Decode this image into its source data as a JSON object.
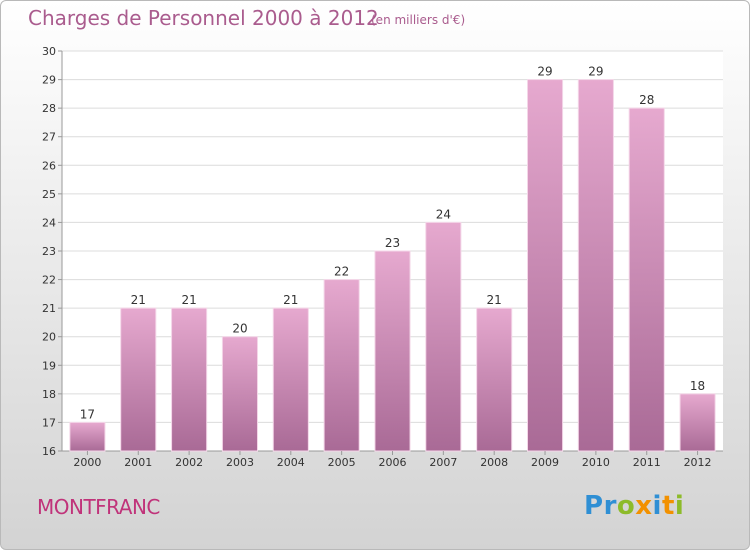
{
  "title": "Charges de Personnel 2000 à 2012",
  "subtitle": "(en milliers d'€)",
  "commune": "MONTFRANC",
  "logo": {
    "letters": [
      {
        "ch": "P",
        "color": "#2f8fd4"
      },
      {
        "ch": "r",
        "color": "#2f8fd4"
      },
      {
        "ch": "o",
        "color": "#8dbb2a"
      },
      {
        "ch": "x",
        "color": "#f29100"
      },
      {
        "ch": "i",
        "color": "#2f8fd4"
      },
      {
        "ch": "t",
        "color": "#f29100"
      },
      {
        "ch": "i",
        "color": "#8dbb2a"
      }
    ]
  },
  "colors": {
    "bar_top": "#e6a9cf",
    "bar_bottom": "#a96a96",
    "grid": "#dcdcdc",
    "axis": "#9a9a9a"
  },
  "chart_data": {
    "type": "bar",
    "categories": [
      "2000",
      "2001",
      "2002",
      "2003",
      "2004",
      "2005",
      "2006",
      "2007",
      "2008",
      "2009",
      "2010",
      "2011",
      "2012"
    ],
    "values": [
      17,
      21,
      21,
      20,
      21,
      22,
      23,
      24,
      21,
      29,
      29,
      28,
      18
    ],
    "ylim": [
      16,
      30
    ],
    "yticks": [
      16,
      17,
      18,
      19,
      20,
      21,
      22,
      23,
      24,
      25,
      26,
      27,
      28,
      29,
      30
    ],
    "grid": true,
    "data_labels": true
  }
}
